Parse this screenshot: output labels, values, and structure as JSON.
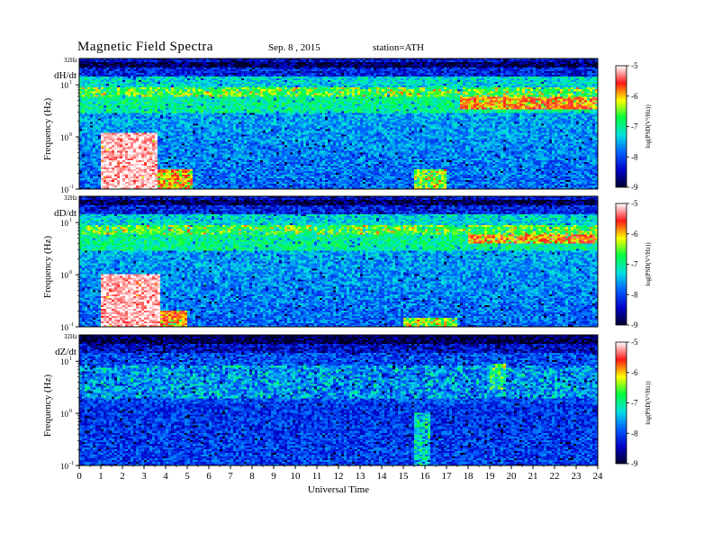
{
  "header": {
    "title": "Magnetic  Field  Spectra",
    "date": "Sep. 8  , 2015",
    "station": "station=ATH"
  },
  "chart_data": {
    "type": "heatmap",
    "title": "Magnetic  Field  Spectra",
    "xlabel": "Universal Time",
    "x_ticks": [
      "0",
      "1",
      "2",
      "3",
      "4",
      "5",
      "6",
      "7",
      "8",
      "9",
      "10",
      "11",
      "12",
      "13",
      "14",
      "15",
      "16",
      "17",
      "18",
      "19",
      "20",
      "21",
      "22",
      "23",
      "24"
    ],
    "xlim": [
      0,
      24
    ],
    "ylabel": "Frequency  (Hz)",
    "y_scale": "log",
    "ylim": [
      0.1,
      32
    ],
    "y_top_label": "32Hz",
    "y_ticks": [
      {
        "value": 10,
        "base": "10",
        "exp": "1"
      },
      {
        "value": 1,
        "base": "10",
        "exp": "0"
      },
      {
        "value": 0.1,
        "base": "10",
        "exp": "-1"
      }
    ],
    "colorbar": {
      "label": "log(PSD(V²/Hz))",
      "range": [
        -9,
        -5
      ],
      "ticks": [
        "-5",
        "-6",
        "-7",
        "-8",
        "-9"
      ],
      "colors": [
        "#ffffff",
        "#ff1a1a",
        "#ffff00",
        "#00ff40",
        "#00e0e0",
        "#0060ff",
        "#0000c8",
        "#000030"
      ]
    },
    "panels": [
      {
        "name": "dH/dt",
        "features": [
          {
            "t": [
              1.0,
              3.6
            ],
            "f": [
              0.1,
              1.2
            ],
            "level": -5.3
          },
          {
            "t": [
              3.6,
              5.2
            ],
            "f": [
              0.1,
              0.25
            ],
            "level": -6.4
          },
          {
            "t": [
              15.5,
              17.0
            ],
            "f": [
              0.1,
              0.25
            ],
            "level": -6.8
          },
          {
            "t": [
              17.6,
              24.0
            ],
            "f": [
              3.5,
              6.0
            ],
            "level": -6.3
          },
          {
            "t": [
              0.0,
              24.0
            ],
            "f": [
              6.0,
              9.0
            ],
            "level": -7.0
          }
        ]
      },
      {
        "name": "dD/dt",
        "features": [
          {
            "t": [
              1.0,
              3.8
            ],
            "f": [
              0.1,
              1.0
            ],
            "level": -5.3
          },
          {
            "t": [
              3.8,
              5.0
            ],
            "f": [
              0.1,
              0.2
            ],
            "level": -6.4
          },
          {
            "t": [
              15.0,
              17.5
            ],
            "f": [
              0.1,
              0.15
            ],
            "level": -6.8
          },
          {
            "t": [
              18.0,
              24.0
            ],
            "f": [
              4.0,
              6.0
            ],
            "level": -6.3
          },
          {
            "t": [
              0.0,
              24.0
            ],
            "f": [
              6.0,
              9.0
            ],
            "level": -7.0
          }
        ]
      },
      {
        "name": "dZ/dt",
        "features": [
          {
            "t": [
              0.0,
              24.0
            ],
            "f": [
              2.0,
              8.0
            ],
            "level": -7.9
          },
          {
            "t": [
              19.0,
              19.8
            ],
            "f": [
              3.0,
              9.0
            ],
            "level": -7.2
          },
          {
            "t": [
              15.5,
              16.2
            ],
            "f": [
              0.1,
              1.0
            ],
            "level": -7.6
          }
        ]
      }
    ]
  }
}
